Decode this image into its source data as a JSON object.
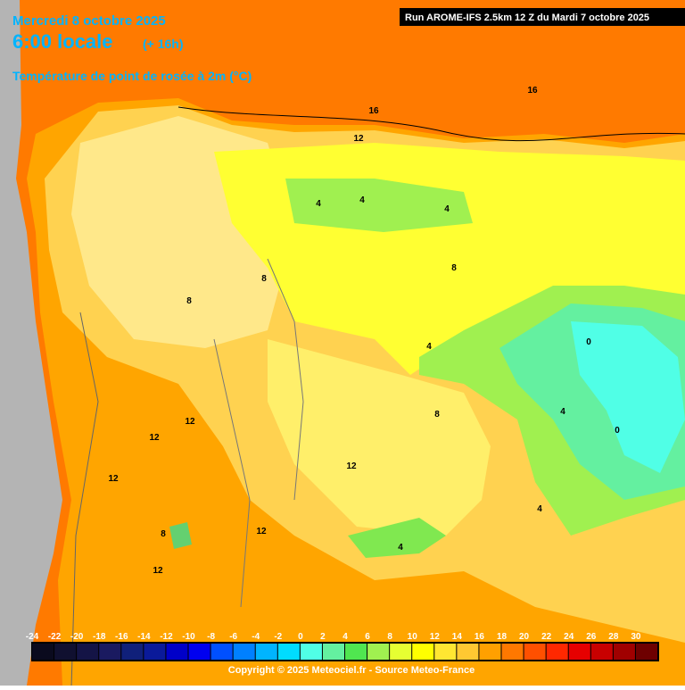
{
  "header": {
    "date": "Mercredi 8 octobre 2025",
    "time": "6:00 locale",
    "offset": "(+ 16h)",
    "variable": "Température de point de rosée à 2m (°C)",
    "run": "Run AROME-IFS 2.5km 12 Z du Mardi 7 octobre 2025"
  },
  "contour_labels": [
    16,
    16,
    12,
    12,
    12,
    12,
    12,
    12,
    12,
    4,
    4,
    4,
    4,
    4,
    4,
    4,
    8,
    8,
    8,
    8,
    8,
    0,
    0
  ],
  "colorbar": {
    "ticks": [
      -24,
      -22,
      -20,
      -18,
      -16,
      -14,
      -12,
      -10,
      -8,
      -6,
      -4,
      -2,
      0,
      2,
      4,
      6,
      8,
      10,
      12,
      14,
      16,
      18,
      20,
      22,
      24,
      26,
      28,
      30
    ],
    "colors": [
      "#0a0a1e",
      "#101030",
      "#141446",
      "#1a1a60",
      "#10207a",
      "#0a1a9a",
      "#0000c8",
      "#0000f0",
      "#0050ff",
      "#0080ff",
      "#00b4ff",
      "#00dcff",
      "#50ffe6",
      "#64f0a0",
      "#50e650",
      "#a0f050",
      "#e6ff32",
      "#ffff00",
      "#ffe632",
      "#ffc832",
      "#ffa000",
      "#ff7800",
      "#ff5000",
      "#ff2800",
      "#e60000",
      "#c80000",
      "#a00000",
      "#6e0000"
    ]
  },
  "footer": {
    "copyright": "Copyright © 2025 Meteociel.fr - Source Meteo-France"
  }
}
